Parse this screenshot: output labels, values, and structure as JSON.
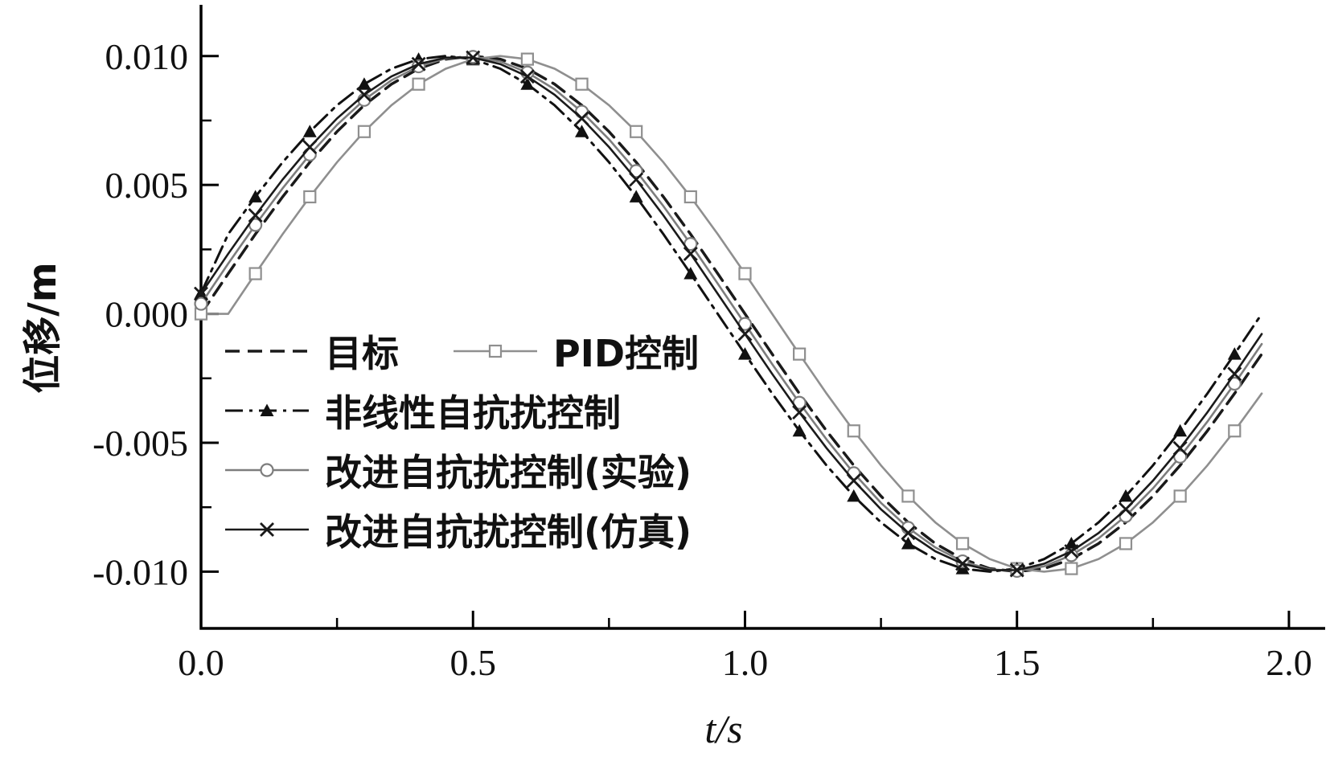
{
  "figure": {
    "background": "#ffffff",
    "axis_color": "#000000"
  },
  "chart_data": {
    "type": "line",
    "title": "",
    "xlabel": "t/s",
    "ylabel": "位移/m",
    "grid": false,
    "legend_position": "inside-left-middle",
    "xlim": [
      0,
      2.04
    ],
    "ylim": [
      -0.0122,
      0.0118
    ],
    "x_ticks": [
      0.0,
      0.5,
      1.0,
      1.5,
      2.0
    ],
    "x_tick_labels": [
      "0.0",
      "0.5",
      "1.0",
      "1.5",
      "2.0"
    ],
    "x_minor_ticks": [
      0.25,
      0.75,
      1.25,
      1.75
    ],
    "y_ticks": [
      0.01,
      0.005,
      0.0,
      -0.005,
      -0.01
    ],
    "y_tick_labels": [
      "0.010",
      "0.005",
      "0.000",
      "-0.005",
      "-0.010"
    ],
    "y_minor_ticks": [
      0.0075,
      0.0025,
      -0.0025,
      -0.0075
    ],
    "marker_step": 2,
    "x": [
      0.0,
      0.05,
      0.1,
      0.15,
      0.2,
      0.25,
      0.3,
      0.35,
      0.4,
      0.45,
      0.5,
      0.55,
      0.6,
      0.65,
      0.7,
      0.75,
      0.8,
      0.85,
      0.9,
      0.95,
      1.0,
      1.05,
      1.1,
      1.15,
      1.2,
      1.25,
      1.3,
      1.35,
      1.4,
      1.45,
      1.5,
      1.55,
      1.6,
      1.65,
      1.7,
      1.75,
      1.8,
      1.85,
      1.9,
      1.95
    ],
    "series": [
      {
        "name": "目标",
        "color": "#1a1a1a",
        "linestyle": "dashed",
        "marker": "none",
        "linewidth": 3.5,
        "values": [
          0.0,
          0.00156,
          0.00309,
          0.00454,
          0.00588,
          0.00707,
          0.00809,
          0.00891,
          0.00951,
          0.00988,
          0.01,
          0.00988,
          0.00951,
          0.00891,
          0.00809,
          0.00707,
          0.00588,
          0.00454,
          0.00309,
          0.00156,
          0.0,
          -0.00156,
          -0.00309,
          -0.00454,
          -0.00588,
          -0.00707,
          -0.00809,
          -0.00891,
          -0.00951,
          -0.00988,
          -0.01,
          -0.00988,
          -0.00951,
          -0.00891,
          -0.00809,
          -0.00707,
          -0.00588,
          -0.00454,
          -0.00309,
          -0.00156
        ]
      },
      {
        "name": "PID控制",
        "color": "#8f8f8f",
        "linestyle": "solid",
        "marker": "square",
        "linewidth": 2.6,
        "values": [
          0.0,
          0.0,
          0.00156,
          0.00309,
          0.00454,
          0.00588,
          0.00707,
          0.00809,
          0.00891,
          0.00951,
          0.00988,
          0.01,
          0.00988,
          0.00951,
          0.00891,
          0.00809,
          0.00707,
          0.00588,
          0.00454,
          0.00309,
          0.00156,
          0.0,
          -0.00156,
          -0.00309,
          -0.00454,
          -0.00588,
          -0.00707,
          -0.00809,
          -0.00891,
          -0.00951,
          -0.00988,
          -0.01,
          -0.00988,
          -0.00951,
          -0.00891,
          -0.00809,
          -0.00707,
          -0.00588,
          -0.00454,
          -0.00309
        ]
      },
      {
        "name": "非线性自抗扰控制",
        "color": "#111111",
        "linestyle": "dashdot",
        "marker": "triangle",
        "linewidth": 3.0,
        "values": [
          0.0008,
          0.00309,
          0.00454,
          0.00588,
          0.00707,
          0.00809,
          0.00891,
          0.00951,
          0.00988,
          0.01,
          0.00988,
          0.00951,
          0.00891,
          0.00809,
          0.00707,
          0.00588,
          0.00454,
          0.00309,
          0.00156,
          0.0,
          -0.00156,
          -0.00309,
          -0.00454,
          -0.00588,
          -0.00707,
          -0.00809,
          -0.00891,
          -0.00951,
          -0.00988,
          -0.01,
          -0.00988,
          -0.00951,
          -0.00891,
          -0.00809,
          -0.00707,
          -0.00588,
          -0.00454,
          -0.00309,
          -0.00156,
          0.0
        ]
      },
      {
        "name": "改进自抗扰控制(实验)",
        "color": "#7d7d7d",
        "linestyle": "solid",
        "marker": "circle",
        "linewidth": 2.6,
        "values": [
          0.00039,
          0.00195,
          0.00345,
          0.00487,
          0.00618,
          0.00733,
          0.0083,
          0.00906,
          0.0096,
          0.00991,
          0.00997,
          0.00979,
          0.00936,
          0.00871,
          0.00784,
          0.00677,
          0.00554,
          0.00418,
          0.00271,
          0.00117,
          -0.00039,
          -0.00195,
          -0.00345,
          -0.00487,
          -0.00618,
          -0.00733,
          -0.0083,
          -0.00906,
          -0.0096,
          -0.00991,
          -0.00997,
          -0.00979,
          -0.00936,
          -0.00871,
          -0.00784,
          -0.00677,
          -0.00554,
          -0.00418,
          -0.00271,
          -0.00117
        ]
      },
      {
        "name": "改进自抗扰控制(仿真)",
        "color": "#1a1a1a",
        "linestyle": "solid",
        "marker": "x",
        "linewidth": 2.6,
        "values": [
          0.00078,
          0.00233,
          0.00382,
          0.00521,
          0.00647,
          0.00758,
          0.0085,
          0.00921,
          0.00969,
          0.00994,
          0.00994,
          0.00969,
          0.00921,
          0.0085,
          0.00758,
          0.00647,
          0.00521,
          0.00382,
          0.00233,
          0.00078,
          -0.00078,
          -0.00233,
          -0.00382,
          -0.00521,
          -0.00647,
          -0.00758,
          -0.0085,
          -0.00921,
          -0.00969,
          -0.00994,
          -0.00994,
          -0.00969,
          -0.00921,
          -0.0085,
          -0.00758,
          -0.00647,
          -0.00521,
          -0.00382,
          -0.00233,
          -0.00078
        ]
      }
    ]
  }
}
